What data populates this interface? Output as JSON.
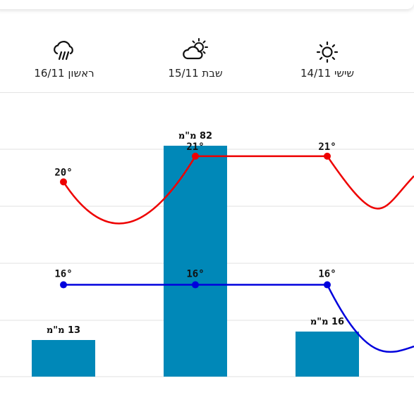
{
  "days": [
    {
      "label": "ראשון 16/11",
      "icon": "rain-cloud-icon"
    },
    {
      "label": "שבת 15/11",
      "icon": "sun-behind-cloud-icon"
    },
    {
      "label": "שישי 14/11",
      "icon": "sun-icon"
    }
  ],
  "chart_data": {
    "type": "bar",
    "categories": [
      "ראשון 16/11",
      "שבת 15/11",
      "שישי 14/11"
    ],
    "series": [
      {
        "values": [
          13,
          82,
          16
        ],
        "labels": [
          "13 מ\"מ",
          "82 מ\"מ",
          "16 מ\"מ"
        ],
        "color": "#0088b8"
      },
      {
        "type": "line",
        "values": [
          20,
          21,
          21
        ],
        "labels": [
          "20°",
          "21°",
          "21°"
        ],
        "color": "#ee0000"
      },
      {
        "type": "line",
        "values": [
          16,
          16,
          16
        ],
        "labels": [
          "16°",
          "16°",
          "16°"
        ],
        "color": "#0000dd"
      }
    ],
    "grid": true
  }
}
